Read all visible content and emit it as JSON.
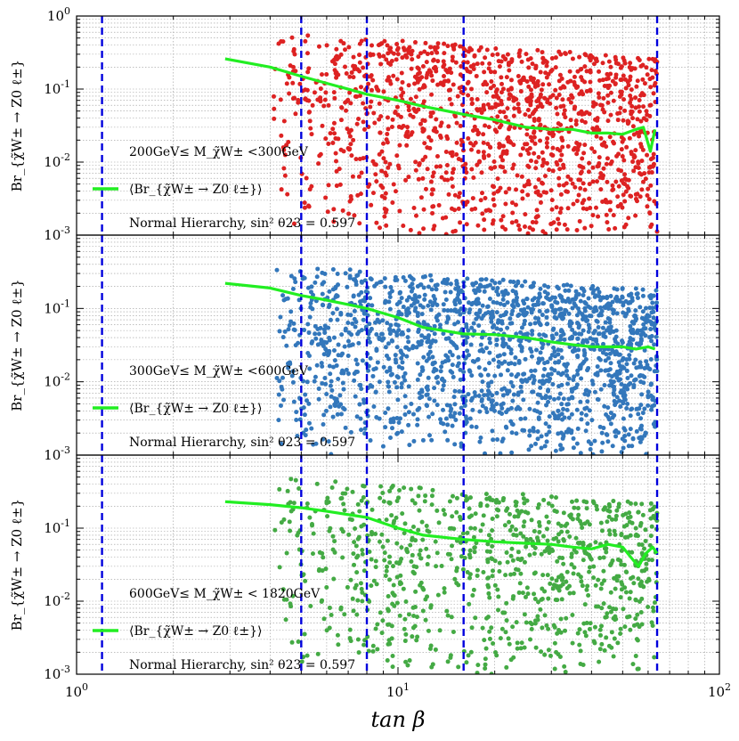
{
  "figure": {
    "xlabel": "tan β",
    "xscale": "log",
    "yscale": "log",
    "xlim": [
      1,
      100
    ],
    "ylim": [
      0.001,
      1
    ],
    "x_tick_labels": [
      "10^0",
      "10^1",
      "10^2"
    ],
    "y_tick_labels": [
      "10^0",
      "10^-1",
      "10^-2",
      "10^-3"
    ],
    "vertical_reference_lines_x": [
      1.2,
      5,
      8,
      16,
      64
    ],
    "reference_line_color": "#0000dd",
    "mean_curve_color": "#22ee22",
    "grid": true
  },
  "chart_data": [
    {
      "type": "scatter",
      "ylabel": "Br_{χ̃W± → Z0 ℓ±}",
      "legend": {
        "mass_range": "200GeV≤ M_χ̃W± <300GeV",
        "curve_label": "⟨Br_{χ̃W± → Z0 ℓ±}⟩",
        "hierarchy": "Normal Hierarchy, sin² θ23 = 0.597"
      },
      "point_color": "#dd2222",
      "scatter_x_range": [
        4.1,
        64
      ],
      "scatter_y_range": [
        0.001,
        0.6
      ],
      "series": [
        {
          "name": "⟨Br_{χ̃W± → Z0 ℓ±}⟩",
          "x": [
            2.9,
            4,
            5,
            6,
            8,
            10,
            12,
            16,
            20,
            25,
            30,
            35,
            40,
            45,
            50,
            55,
            58,
            61,
            63
          ],
          "y": [
            0.26,
            0.2,
            0.15,
            0.12,
            0.085,
            0.07,
            0.058,
            0.045,
            0.038,
            0.03,
            0.028,
            0.028,
            0.025,
            0.025,
            0.024,
            0.028,
            0.03,
            0.014,
            0.028
          ]
        }
      ]
    },
    {
      "type": "scatter",
      "ylabel": "Br_{χ̃W± → Z0 ℓ±}",
      "legend": {
        "mass_range": "300GeV≤ M_χ̃W± <600GeV",
        "curve_label": "⟨Br_{χ̃W± → Z0 ℓ±}⟩",
        "hierarchy": "Normal Hierarchy, sin² θ23 = 0.597"
      },
      "point_color": "#3377bb",
      "scatter_x_range": [
        4.1,
        64
      ],
      "scatter_y_range": [
        0.001,
        0.4
      ],
      "series": [
        {
          "name": "⟨Br_{χ̃W± → Z0 ℓ±}⟩",
          "x": [
            2.9,
            4,
            5,
            6,
            8,
            10,
            12,
            16,
            20,
            25,
            30,
            35,
            40,
            45,
            50,
            55,
            60,
            63
          ],
          "y": [
            0.22,
            0.19,
            0.15,
            0.13,
            0.1,
            0.075,
            0.055,
            0.045,
            0.044,
            0.04,
            0.035,
            0.032,
            0.03,
            0.03,
            0.03,
            0.028,
            0.03,
            0.028
          ]
        }
      ]
    },
    {
      "type": "scatter",
      "ylabel": "Br_{χ̃W± → Z0 ℓ±}",
      "legend": {
        "mass_range": "600GeV≤ M_χ̃W± < 1820GeV",
        "curve_label": "⟨Br_{χ̃W± → Z0 ℓ±}⟩",
        "hierarchy": "Normal Hierarchy, sin² θ23 = 0.597"
      },
      "point_color": "#44aa44",
      "scatter_x_range": [
        4.1,
        64
      ],
      "scatter_y_range": [
        0.001,
        0.5
      ],
      "series": [
        {
          "name": "⟨Br_{χ̃W± → Z0 ℓ±}⟩",
          "x": [
            2.9,
            4,
            5,
            6,
            8,
            10,
            12,
            16,
            20,
            25,
            30,
            35,
            40,
            45,
            50,
            53,
            56,
            59,
            62,
            64
          ],
          "y": [
            0.23,
            0.21,
            0.19,
            0.17,
            0.14,
            0.1,
            0.08,
            0.07,
            0.065,
            0.062,
            0.06,
            0.055,
            0.052,
            0.06,
            0.055,
            0.04,
            0.03,
            0.045,
            0.055,
            0.045
          ]
        }
      ]
    }
  ]
}
